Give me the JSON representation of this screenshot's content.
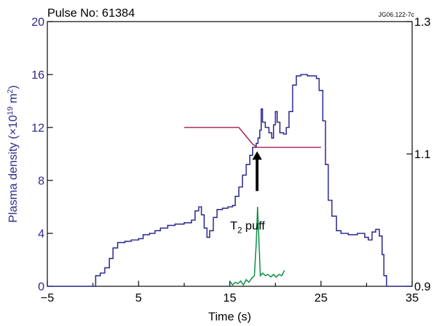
{
  "chart_data": {
    "type": "line",
    "title": "Pulse No: 61384",
    "figure_id": "JG06.122-7c",
    "xlabel": "Time (s)",
    "ylabel_left": {
      "text": "Plasma density (×10",
      "exp": "19",
      "text2": " m",
      "exp2": "2",
      "text3": ")"
    },
    "xlim": [
      -5,
      35
    ],
    "ylim_left": [
      0,
      20
    ],
    "ylim_right": [
      0.9,
      1.3
    ],
    "x_ticks": [
      -5,
      5,
      15,
      25,
      35
    ],
    "x_minor_ticks": [
      0,
      10,
      20,
      30
    ],
    "y_left_ticks": [
      0,
      4,
      8,
      12,
      16,
      20
    ],
    "y_right_ticks": [
      0.9,
      1.1,
      1.3
    ],
    "grid": false,
    "colors": {
      "density": "#2e2b8f",
      "ratio": "#a0285a",
      "puff": "#14904a",
      "arrow": "#000000",
      "axes": "#000000",
      "left_axis_text": "#2e2b8f"
    },
    "annotation": {
      "base": "T",
      "sub": "2",
      "text": " puff",
      "x": 18.1,
      "y": 4.6
    },
    "arrow": {
      "x": 18,
      "y_from": 7.2,
      "y_to": 10.2
    },
    "series": [
      {
        "axis": "left",
        "style": "step",
        "color": "#2e2b8f",
        "points": [
          [
            -5,
            0
          ],
          [
            0,
            0
          ],
          [
            0.3,
            0.8
          ],
          [
            0.8,
            1.0
          ],
          [
            1.3,
            1.4
          ],
          [
            1.8,
            2.1
          ],
          [
            2.2,
            2.9
          ],
          [
            2.7,
            3.3
          ],
          [
            3.5,
            3.4
          ],
          [
            4.2,
            3.5
          ],
          [
            5,
            3.6
          ],
          [
            5.5,
            3.9
          ],
          [
            6.2,
            4.0
          ],
          [
            6.8,
            4.2
          ],
          [
            7.4,
            4.4
          ],
          [
            8.2,
            4.6
          ],
          [
            9.0,
            4.7
          ],
          [
            10.0,
            4.8
          ],
          [
            10.8,
            5.0
          ],
          [
            11.2,
            5.7
          ],
          [
            11.6,
            6.0
          ],
          [
            11.9,
            5.4
          ],
          [
            12.2,
            4.4
          ],
          [
            12.5,
            3.7
          ],
          [
            12.8,
            4.2
          ],
          [
            13.2,
            5.2
          ],
          [
            13.6,
            5.8
          ],
          [
            14.2,
            5.9
          ],
          [
            14.8,
            6.0
          ],
          [
            15.3,
            6.1
          ],
          [
            15.6,
            6.8
          ],
          [
            16.0,
            7.5
          ],
          [
            16.4,
            8.4
          ],
          [
            16.8,
            9.2
          ],
          [
            17.2,
            9.9
          ],
          [
            17.5,
            10.5
          ],
          [
            17.9,
            10.8
          ],
          [
            18.1,
            11.2
          ],
          [
            18.3,
            11.8
          ],
          [
            18.45,
            13.4
          ],
          [
            18.6,
            12.4
          ],
          [
            18.9,
            12.0
          ],
          [
            19.3,
            11.6
          ],
          [
            19.6,
            11.2
          ],
          [
            19.8,
            12.2
          ],
          [
            20.0,
            13.2
          ],
          [
            20.2,
            12.4
          ],
          [
            20.5,
            11.6
          ],
          [
            20.9,
            11.5
          ],
          [
            21.2,
            12.0
          ],
          [
            21.5,
            13.2
          ],
          [
            21.9,
            15.2
          ],
          [
            22.3,
            15.9
          ],
          [
            22.8,
            16.0
          ],
          [
            23.5,
            15.9
          ],
          [
            24.0,
            15.9
          ],
          [
            24.5,
            15.7
          ],
          [
            24.8,
            14.8
          ],
          [
            25.2,
            12.5
          ],
          [
            25.5,
            9.2
          ],
          [
            25.8,
            6.5
          ],
          [
            26.2,
            5.3
          ],
          [
            26.7,
            4.2
          ],
          [
            27.2,
            4.0
          ],
          [
            28.0,
            3.9
          ],
          [
            29.0,
            4.0
          ],
          [
            29.8,
            3.7
          ],
          [
            30.2,
            3.5
          ],
          [
            30.6,
            4.1
          ],
          [
            31.0,
            4.3
          ],
          [
            31.4,
            3.8
          ],
          [
            31.7,
            2.4
          ],
          [
            31.9,
            0.8
          ],
          [
            32.2,
            0
          ],
          [
            35,
            0
          ]
        ]
      },
      {
        "axis": "right",
        "style": "line",
        "color": "#a0285a",
        "points": [
          [
            10,
            1.14
          ],
          [
            16,
            1.14
          ],
          [
            17.5,
            1.115
          ],
          [
            18,
            1.11
          ],
          [
            25,
            1.11
          ]
        ]
      },
      {
        "axis": "left",
        "style": "line",
        "color": "#14904a",
        "points": [
          [
            15.0,
            0.4
          ],
          [
            15.3,
            0.1
          ],
          [
            15.6,
            0.3
          ],
          [
            15.9,
            0.2
          ],
          [
            16.2,
            0.4
          ],
          [
            16.5,
            0.1
          ],
          [
            16.8,
            0.5
          ],
          [
            17.1,
            0.3
          ],
          [
            17.4,
            0.6
          ],
          [
            17.7,
            0.8
          ],
          [
            17.9,
            3.2
          ],
          [
            18.05,
            6.0
          ],
          [
            18.2,
            3.4
          ],
          [
            18.35,
            0.8
          ],
          [
            18.6,
            1.0
          ],
          [
            18.9,
            0.8
          ],
          [
            19.2,
            0.9
          ],
          [
            19.5,
            0.7
          ],
          [
            19.8,
            0.9
          ],
          [
            20.1,
            0.7
          ],
          [
            20.4,
            0.9
          ],
          [
            20.7,
            0.8
          ],
          [
            21.0,
            1.2
          ]
        ]
      }
    ]
  }
}
